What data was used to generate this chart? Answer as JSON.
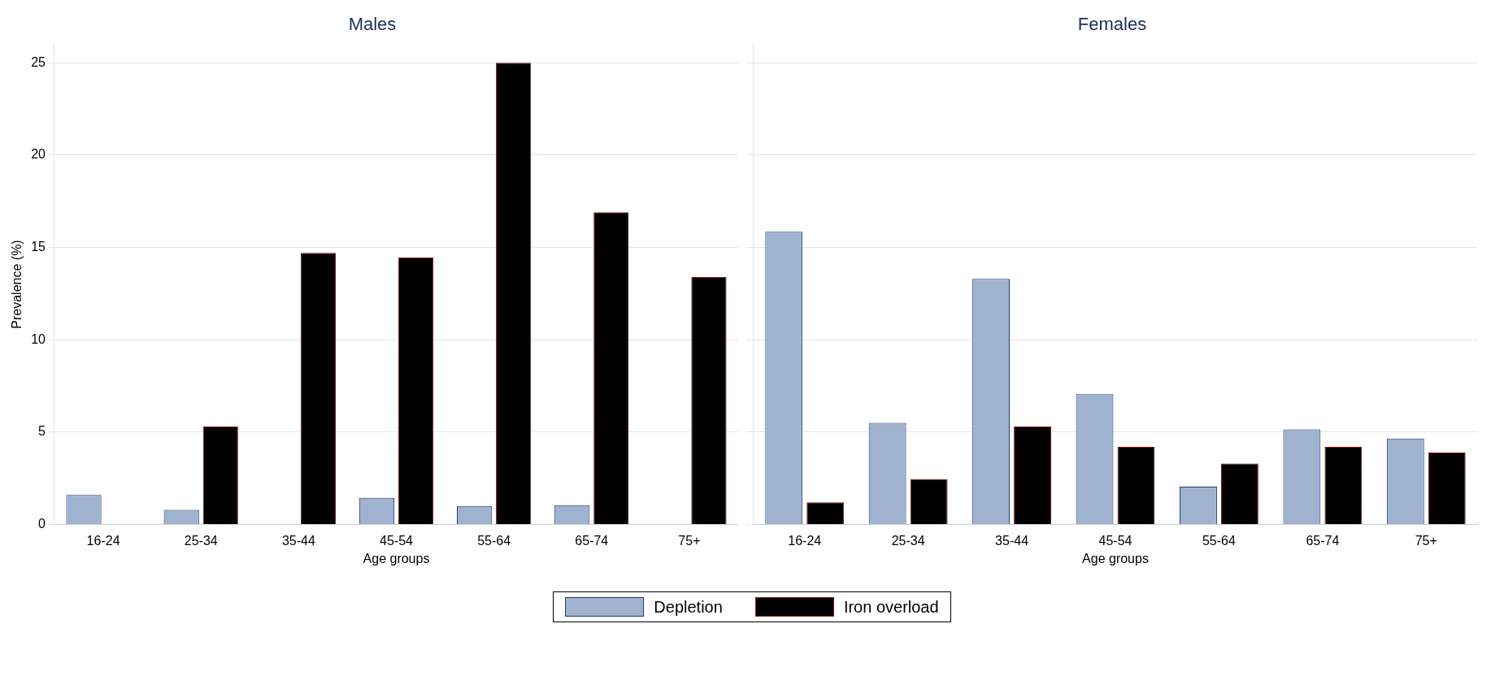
{
  "chart_data": [
    {
      "type": "bar",
      "title": "Males",
      "xlabel": "Age groups",
      "ylabel": "Prevalence (%)",
      "categories": [
        "16-24",
        "25-34",
        "35-44",
        "45-54",
        "55-64",
        "65-74",
        "75+"
      ],
      "series": [
        {
          "name": "Depletion",
          "color": "#9fb3d1",
          "values": [
            1.6,
            0.8,
            0,
            1.45,
            1.0,
            1.05,
            0
          ]
        },
        {
          "name": "Iron overload",
          "color": "#000000",
          "values": [
            0,
            5.3,
            14.7,
            14.45,
            25,
            16.9,
            13.4
          ]
        }
      ],
      "ylim": [
        0,
        26
      ],
      "yticks": [
        0,
        5,
        10,
        15,
        20,
        25
      ],
      "grid": "y",
      "legend": "bottom"
    },
    {
      "type": "bar",
      "title": "Females",
      "xlabel": "Age groups",
      "categories": [
        "16-24",
        "25-34",
        "35-44",
        "45-54",
        "55-64",
        "65-74",
        "75+"
      ],
      "series": [
        {
          "name": "Depletion",
          "color": "#9fb3d1",
          "values": [
            15.85,
            5.5,
            13.3,
            7.05,
            2.05,
            5.15,
            4.65
          ]
        },
        {
          "name": "Iron overload",
          "color": "#000000",
          "values": [
            1.2,
            2.45,
            5.3,
            4.2,
            3.3,
            4.2,
            3.9
          ]
        }
      ],
      "ylim": [
        0,
        26
      ],
      "yticks": [
        0,
        5,
        10,
        15,
        20,
        25
      ],
      "grid": "y",
      "tick_labels": "x",
      "legend": "bottom"
    }
  ]
}
